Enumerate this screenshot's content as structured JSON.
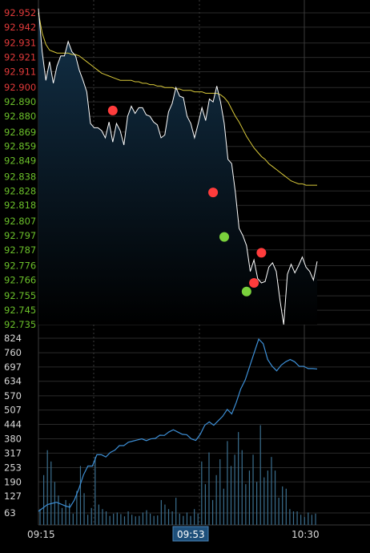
{
  "colors": {
    "background": "#000000",
    "grid": "#2a2a2a",
    "price_line": "#ffffff",
    "avg_line": "#d9c93a",
    "area_fill": "#13324a",
    "volume_bar": "#3b6f8f",
    "cumulative_line": "#3d8fd6",
    "tick_up": "#e23a3a",
    "tick_down": "#6bc02a",
    "marker_sell": "#ff3c3c",
    "marker_buy": "#7ad13c",
    "cursor_label_bg": "#1e4f7a"
  },
  "chart_data": [
    {
      "type": "line",
      "name": "price",
      "ylim": [
        92.735,
        92.952
      ],
      "y_ticks": [
        "92.952",
        "92.942",
        "92.931",
        "92.921",
        "92.911",
        "92.900",
        "92.890",
        "92.880",
        "92.869",
        "92.859",
        "92.849",
        "92.838",
        "92.828",
        "92.818",
        "92.807",
        "92.797",
        "92.787",
        "92.776",
        "92.766",
        "92.755",
        "92.745",
        "92.735"
      ],
      "y_ticks_up": [
        "92.952",
        "92.942",
        "92.931",
        "92.921",
        "92.911",
        "92.900"
      ],
      "x_range": [
        0,
        75
      ],
      "series": [
        {
          "values": [
            92.955,
            92.925,
            92.905,
            92.918,
            92.903,
            92.915,
            92.922,
            92.922,
            92.932,
            92.925,
            92.922,
            92.912,
            92.905,
            92.897,
            92.875,
            92.872,
            92.872,
            92.87,
            92.865,
            92.876,
            92.862,
            92.875,
            92.87,
            92.86,
            92.88,
            92.887,
            92.882,
            92.886,
            92.886,
            92.881,
            92.88,
            92.876,
            92.874,
            92.865,
            92.867,
            92.883,
            92.889,
            92.9,
            92.894,
            92.893,
            92.88,
            92.875,
            92.865,
            92.875,
            92.886,
            92.877,
            92.892,
            92.89,
            92.901,
            92.89,
            92.875,
            92.85,
            92.847,
            92.827,
            92.802,
            92.797,
            92.79,
            92.772,
            92.78,
            92.767,
            92.764,
            92.765,
            92.775,
            92.778,
            92.772,
            92.752,
            92.735,
            92.77,
            92.777,
            92.771,
            92.776,
            92.782,
            92.775,
            92.772,
            92.766,
            92.779
          ]
        },
        {
          "values": [
            92.952,
            92.938,
            92.93,
            92.926,
            92.925,
            92.924,
            92.924,
            92.924,
            92.924,
            92.923,
            92.923,
            92.922,
            92.92,
            92.918,
            92.916,
            92.914,
            92.912,
            92.91,
            92.909,
            92.908,
            92.907,
            92.906,
            92.905,
            92.905,
            92.905,
            92.905,
            92.904,
            92.904,
            92.903,
            92.903,
            92.902,
            92.902,
            92.901,
            92.901,
            92.9,
            92.9,
            92.9,
            92.899,
            92.899,
            92.898,
            92.898,
            92.898,
            92.897,
            92.897,
            92.897,
            92.896,
            92.896,
            92.896,
            92.896,
            92.895,
            92.893,
            92.89,
            92.885,
            92.88,
            92.876,
            92.871,
            92.866,
            92.862,
            92.858,
            92.855,
            92.852,
            92.85,
            92.847,
            92.845,
            92.843,
            92.841,
            92.839,
            92.837,
            92.835,
            92.834,
            92.833,
            92.833,
            92.832,
            92.832,
            92.832,
            92.832
          ]
        }
      ],
      "markers": [
        {
          "x": 20,
          "value": 92.884,
          "kind": "sell"
        },
        {
          "x": 47,
          "value": 92.827,
          "kind": "sell"
        },
        {
          "x": 50,
          "value": 92.796,
          "kind": "buy"
        },
        {
          "x": 56,
          "value": 92.758,
          "kind": "buy"
        },
        {
          "x": 58,
          "value": 92.764,
          "kind": "sell"
        },
        {
          "x": 60,
          "value": 92.785,
          "kind": "sell"
        }
      ]
    },
    {
      "type": "bar",
      "name": "volume",
      "ylim": [
        0,
        824
      ],
      "y_ticks": [
        "824",
        "760",
        "697",
        "634",
        "570",
        "507",
        "444",
        "380",
        "317",
        "253",
        "190",
        "127",
        "63"
      ],
      "series": [
        {
          "values": [
            70,
            220,
            330,
            280,
            190,
            130,
            75,
            110,
            95,
            50,
            150,
            260,
            140,
            45,
            75,
            300,
            90,
            70,
            60,
            40,
            50,
            55,
            48,
            38,
            60,
            45,
            38,
            40,
            55,
            65,
            50,
            40,
            42,
            110,
            90,
            70,
            60,
            120,
            50,
            40,
            55,
            40,
            70,
            50,
            280,
            180,
            320,
            110,
            220,
            290,
            160,
            370,
            260,
            310,
            410,
            330,
            180,
            240,
            310,
            190,
            440,
            210,
            240,
            300,
            240,
            120,
            170,
            160,
            70,
            60,
            60,
            45,
            35,
            55,
            45,
            50
          ]
        },
        {
          "values": [
            60,
            75,
            90,
            95,
            100,
            92,
            84,
            78,
            110,
            160,
            220,
            260,
            260,
            310,
            310,
            300,
            320,
            330,
            350,
            350,
            365,
            370,
            375,
            380,
            372,
            380,
            382,
            396,
            395,
            410,
            420,
            410,
            400,
            398,
            380,
            373,
            400,
            440,
            455,
            440,
            460,
            480,
            510,
            490,
            540,
            600,
            640,
            700,
            760,
            820,
            800,
            730,
            700,
            680,
            705,
            720,
            730,
            720,
            700,
            700,
            690,
            690,
            688
          ]
        }
      ]
    }
  ],
  "x_axis": {
    "labels": [
      "09:15",
      "09:53",
      "10:30"
    ],
    "cursor_label": "09:53"
  }
}
